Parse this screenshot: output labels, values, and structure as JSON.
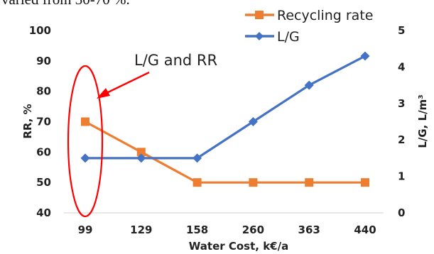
{
  "header_fragment": "varied from 30-70 %.",
  "annotation": {
    "label": "L/G and RR",
    "highlight_color": "#ff0000"
  },
  "chart_data": {
    "type": "line",
    "categories": [
      "99",
      "129",
      "158",
      "260",
      "363",
      "440"
    ],
    "xlabel": "Water Cost, k€/a",
    "ylabel_left": "RR, %",
    "ylabel_right": "L/G, L/m³",
    "ylim_left": [
      40,
      100
    ],
    "yticks_left": [
      40,
      50,
      60,
      70,
      80,
      90,
      100
    ],
    "ylim_right": [
      0,
      5
    ],
    "yticks_right": [
      0,
      1,
      2,
      3,
      4,
      5
    ],
    "grid": false,
    "legend_position": "top-right",
    "series": [
      {
        "name": "Recycling rate",
        "axis": "left",
        "marker": "square",
        "color": "#ed7d31",
        "values": [
          70,
          60,
          50,
          50,
          50,
          50
        ]
      },
      {
        "name": "L/G",
        "axis": "right",
        "marker": "diamond",
        "color": "#4472c4",
        "values": [
          1.5,
          1.5,
          1.5,
          2.5,
          3.5,
          4.3
        ]
      }
    ]
  }
}
